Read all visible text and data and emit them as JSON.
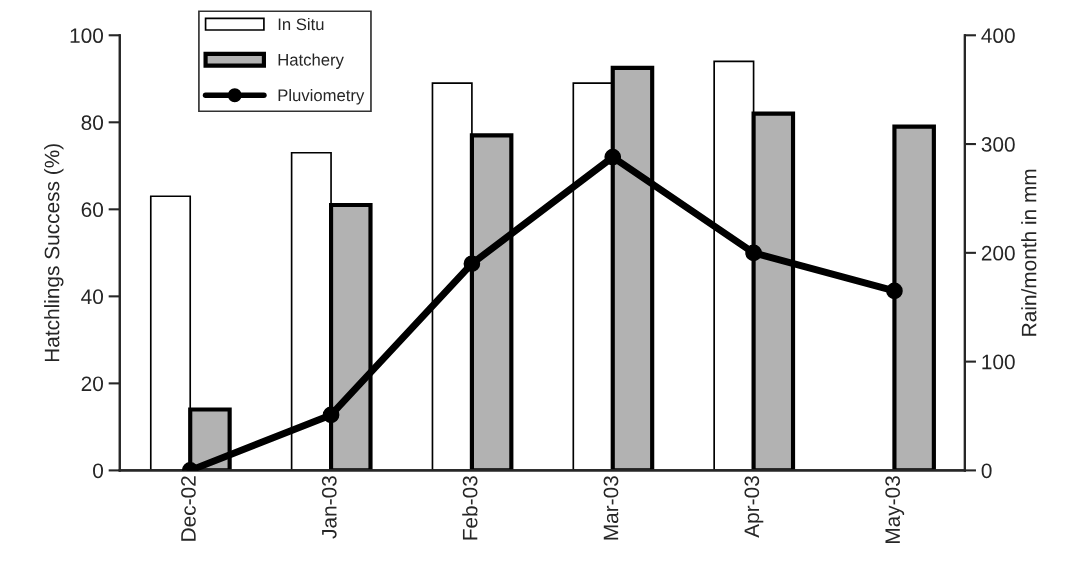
{
  "chart_data": {
    "type": "bar",
    "ylabel": "Hatchlings Success (%)",
    "y2label": "Rain/month in mm",
    "categories": [
      "Dec-02",
      "Jan-03",
      "Feb-03",
      "Mar-03",
      "Apr-03",
      "May-03"
    ],
    "series": [
      {
        "name": "In Situ",
        "color": "#ffffff",
        "values": [
          63,
          73,
          89,
          89,
          94,
          null
        ]
      },
      {
        "name": "Hatchery",
        "color": "#b2b2b2",
        "values": [
          14,
          61,
          77,
          92.5,
          82,
          79
        ]
      },
      {
        "name": "Pluviometry",
        "type": "line",
        "axis": "y2",
        "color": "#000000",
        "marker": "circle",
        "values": [
          0,
          51,
          190,
          288,
          200,
          165
        ]
      }
    ],
    "ylim": [
      0,
      100
    ],
    "yticks": [
      0,
      20,
      40,
      60,
      80,
      100
    ],
    "y2lim": [
      0,
      400
    ],
    "y2ticks": [
      0,
      100,
      200,
      300,
      400
    ],
    "grid": false,
    "legend": "top left"
  }
}
